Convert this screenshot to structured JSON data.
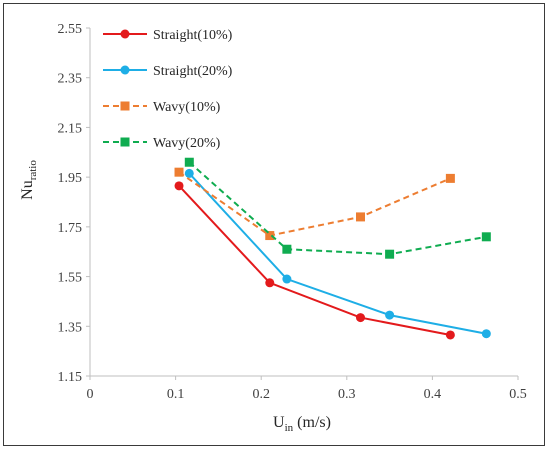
{
  "chart_data": {
    "type": "line",
    "xlabel": {
      "main": "U",
      "sub": "in",
      "rest": " (m/s)"
    },
    "ylabel": {
      "main": "Nu",
      "sub": "ratio"
    },
    "xlim": [
      0,
      0.5
    ],
    "ylim": [
      1.15,
      2.55
    ],
    "x_ticks": [
      "0",
      "0.1",
      "0.2",
      "0.3",
      "0.4",
      "0.5"
    ],
    "y_ticks": [
      "1.15",
      "1.35",
      "1.55",
      "1.75",
      "1.95",
      "2.15",
      "2.35",
      "2.55"
    ],
    "legend_position": "top-left",
    "series": [
      {
        "name": "Straight(10%)",
        "color": "#e31a1c",
        "marker": "circle",
        "dashed": false,
        "x": [
          0.104,
          0.21,
          0.316,
          0.421
        ],
        "y": [
          1.915,
          1.525,
          1.385,
          1.315
        ]
      },
      {
        "name": "Straight(20%)",
        "color": "#1eaee6",
        "marker": "circle",
        "dashed": false,
        "x": [
          0.116,
          0.23,
          0.35,
          0.463
        ],
        "y": [
          1.965,
          1.54,
          1.395,
          1.32
        ]
      },
      {
        "name": "Wavy(10%)",
        "color": "#ed7d31",
        "marker": "square",
        "dashed": true,
        "x": [
          0.104,
          0.21,
          0.316,
          0.421
        ],
        "y": [
          1.97,
          1.715,
          1.79,
          1.945
        ]
      },
      {
        "name": "Wavy(20%)",
        "color": "#0fac50",
        "marker": "square",
        "dashed": true,
        "x": [
          0.116,
          0.23,
          0.35,
          0.463
        ],
        "y": [
          2.01,
          1.66,
          1.64,
          1.71
        ]
      }
    ]
  }
}
